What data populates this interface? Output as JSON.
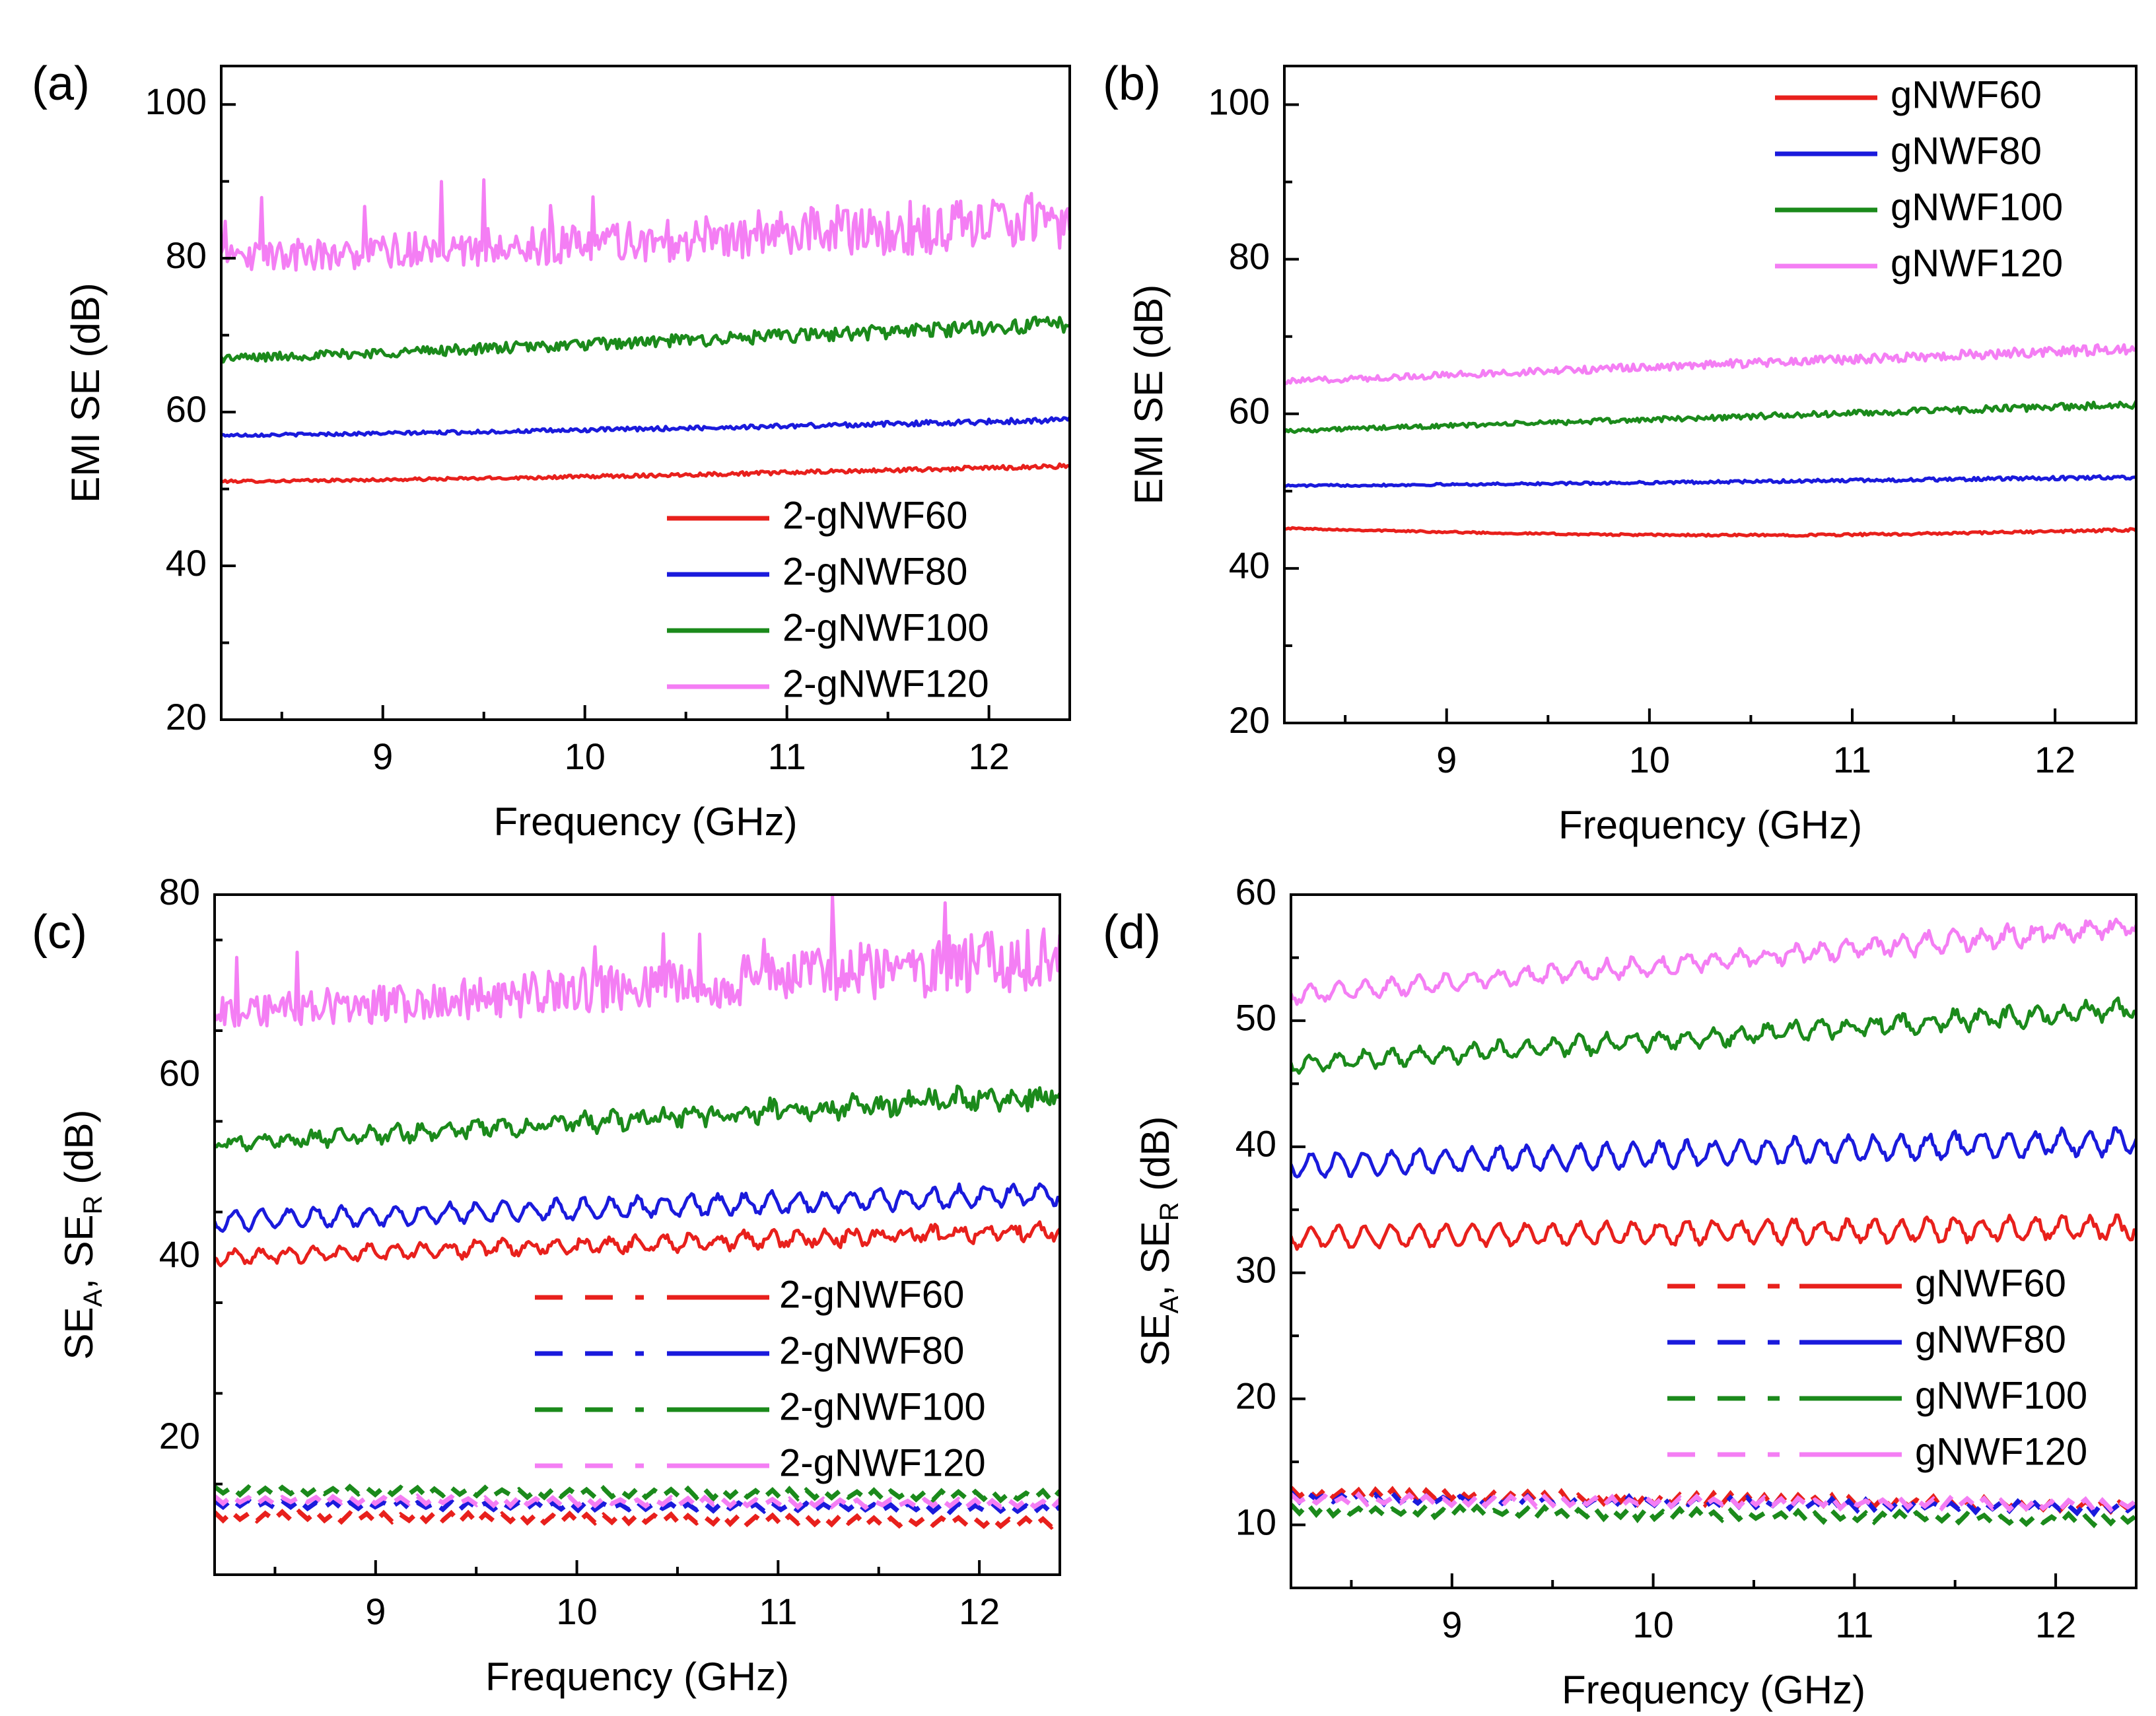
{
  "chart_data": [
    {
      "panel": "(a)",
      "type": "line",
      "xlabel": "Frequency (GHz)",
      "ylabel": "EMI SE (dB)",
      "xlim": [
        8.2,
        12.4
      ],
      "ylim": [
        20,
        105
      ],
      "xticks": [
        9,
        10,
        11,
        12
      ],
      "yticks": [
        20,
        40,
        60,
        80,
        100
      ],
      "legend_position": "bottom-right",
      "series": [
        {
          "name": "2-gNWF60",
          "color": "#e8201c",
          "style": "solid",
          "start": 51,
          "end": 53,
          "noise": 0.25,
          "shape": 0.6
        },
        {
          "name": "2-gNWF80",
          "color": "#1a1adc",
          "style": "solid",
          "start": 57,
          "end": 59,
          "noise": 0.3,
          "shape": 0.7
        },
        {
          "name": "2-gNWF100",
          "color": "#1b8a1b",
          "style": "solid",
          "start": 67,
          "end": 71.5,
          "noise": 0.9,
          "shape": 0.9
        },
        {
          "name": "2-gNWF120",
          "color": "#f47ef4",
          "style": "solid",
          "start": 80,
          "end": 85,
          "noise": 3.2,
          "shape": 0.9
        }
      ]
    },
    {
      "panel": "(b)",
      "type": "line",
      "xlabel": "Frequency (GHz)",
      "ylabel": "EMI SE (dB)",
      "xlim": [
        8.2,
        12.4
      ],
      "ylim": [
        20,
        105
      ],
      "xticks": [
        9,
        10,
        11,
        12
      ],
      "yticks": [
        20,
        40,
        60,
        80,
        100
      ],
      "legend_position": "top-right",
      "series": [
        {
          "name": "gNWF60",
          "color": "#e8201c",
          "style": "solid",
          "start": 45.2,
          "end": 45,
          "noise": 0.15,
          "shape": 1.0,
          "sag": 0.8
        },
        {
          "name": "gNWF80",
          "color": "#1a1adc",
          "style": "solid",
          "start": 50.7,
          "end": 51.8,
          "noise": 0.2,
          "shape": 0.8
        },
        {
          "name": "gNWF100",
          "color": "#1b8a1b",
          "style": "solid",
          "start": 57.8,
          "end": 61.2,
          "noise": 0.4,
          "shape": 1.0
        },
        {
          "name": "gNWF120",
          "color": "#f47ef4",
          "style": "solid",
          "start": 64.2,
          "end": 68.5,
          "noise": 0.6,
          "shape": 1.0
        }
      ]
    },
    {
      "panel": "(c)",
      "type": "line",
      "xlabel": "Frequency (GHz)",
      "ylabel_main": "SE",
      "ylabel_sub1": "A",
      "ylabel_sep": ", SE",
      "ylabel_sub2": "R",
      "ylabel_unit": " (dB)",
      "xlim": [
        8.2,
        12.4
      ],
      "ylim": [
        5,
        80
      ],
      "xticks": [
        9,
        10,
        11,
        12
      ],
      "yticks": [
        20,
        40,
        60,
        80
      ],
      "legend_position": "bottom-right",
      "series": [
        {
          "name": "2-gNWF60",
          "color": "#e8201c",
          "style": "solid",
          "start": 40,
          "end": 43,
          "noise": 0.5,
          "shape": 1.0,
          "wavy": 0.7
        },
        {
          "name": "2-gNWF80",
          "color": "#1a1adc",
          "style": "solid",
          "start": 44,
          "end": 47,
          "noise": 0.4,
          "shape": 1.0,
          "wavy": 1.0
        },
        {
          "name": "2-gNWF100",
          "color": "#1b8a1b",
          "style": "solid",
          "start": 52.5,
          "end": 58,
          "noise": 0.9,
          "shape": 1.0,
          "wavy": 0.6
        },
        {
          "name": "2-gNWF120",
          "color": "#f47ef4",
          "style": "solid",
          "start": 67,
          "end": 73,
          "noise": 3.0,
          "shape": 0.9
        },
        {
          "name": "2-gNWF60 SE_R",
          "color": "#e8201c",
          "style": "dashed",
          "start": 11.5,
          "end": 10.8,
          "zig": 0.8
        },
        {
          "name": "2-gNWF80 SE_R",
          "color": "#1a1adc",
          "style": "dashed",
          "start": 12.8,
          "end": 12.3,
          "zig": 0.7
        },
        {
          "name": "2-gNWF100 SE_R",
          "color": "#1b8a1b",
          "style": "dashed",
          "start": 14.3,
          "end": 13.7,
          "zig": 0.8
        },
        {
          "name": "2-gNWF120 SE_R",
          "color": "#f47ef4",
          "style": "dashed",
          "start": 13.3,
          "end": 12.8,
          "zig": 0.7
        }
      ]
    },
    {
      "panel": "(d)",
      "type": "line",
      "xlabel": "Frequency (GHz)",
      "ylabel_main": "SE",
      "ylabel_sub1": "A",
      "ylabel_sep": ", SE",
      "ylabel_sub2": "R",
      "ylabel_unit": " (dB)",
      "xlim": [
        8.2,
        12.4
      ],
      "ylim": [
        5,
        60
      ],
      "xticks": [
        9,
        10,
        11,
        12
      ],
      "yticks": [
        10,
        20,
        30,
        40,
        50,
        60
      ],
      "legend_position": "bottom-right",
      "series": [
        {
          "name": "gNWF60",
          "color": "#e8201c",
          "style": "solid",
          "start": 32.8,
          "end": 33.6,
          "noise": 0.3,
          "shape": 1.0,
          "wavy": 0.8
        },
        {
          "name": "gNWF80",
          "color": "#1a1adc",
          "style": "solid",
          "start": 38.5,
          "end": 40.5,
          "noise": 0.3,
          "shape": 1.0,
          "wavy": 0.9
        },
        {
          "name": "gNWF100",
          "color": "#1b8a1b",
          "style": "solid",
          "start": 46.5,
          "end": 51,
          "noise": 0.4,
          "shape": 1.0,
          "wavy": 0.6
        },
        {
          "name": "gNWF120",
          "color": "#f47ef4",
          "style": "solid",
          "start": 52,
          "end": 57.5,
          "noise": 0.4,
          "shape": 1.0,
          "wavy": 0.6
        },
        {
          "name": "gNWF60 SE_R",
          "color": "#e8201c",
          "style": "dashed",
          "start": 12.5,
          "end": 11.5,
          "zig": 0.7
        },
        {
          "name": "gNWF80 SE_R",
          "color": "#1a1adc",
          "style": "dashed",
          "start": 12.2,
          "end": 11.3,
          "zig": 0.6
        },
        {
          "name": "gNWF100 SE_R",
          "color": "#1b8a1b",
          "style": "dashed",
          "start": 11.2,
          "end": 10.4,
          "zig": 0.6
        },
        {
          "name": "gNWF120 SE_R",
          "color": "#f47ef4",
          "style": "dashed",
          "start": 12.0,
          "end": 11.6,
          "zig": 0.6
        }
      ]
    }
  ]
}
